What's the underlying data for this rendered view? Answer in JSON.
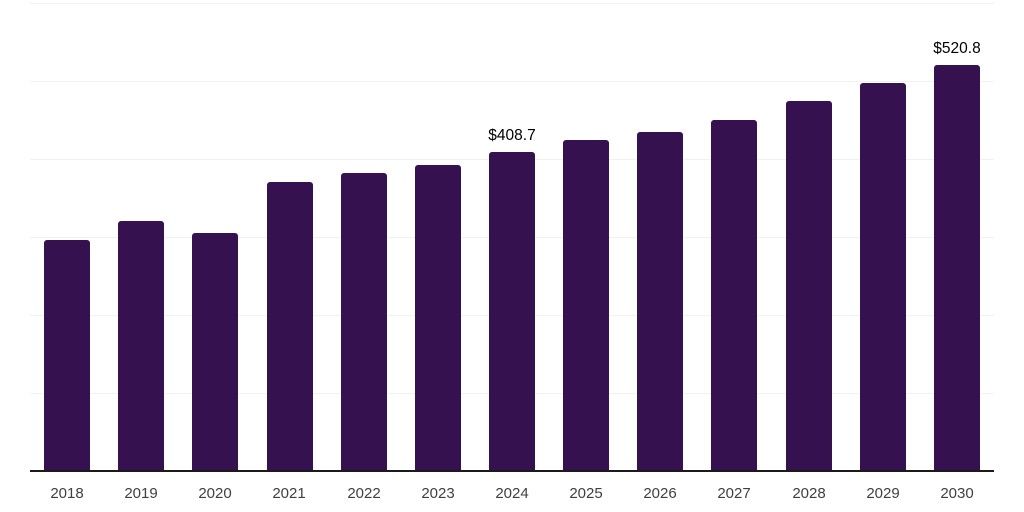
{
  "chart_data": {
    "type": "bar",
    "title": "",
    "xlabel": "",
    "ylabel": "",
    "categories": [
      "2018",
      "2019",
      "2020",
      "2021",
      "2022",
      "2023",
      "2024",
      "2025",
      "2026",
      "2027",
      "2028",
      "2029",
      "2030"
    ],
    "values": [
      296,
      320,
      305,
      370,
      382,
      392,
      408.7,
      424,
      435,
      450,
      474,
      497,
      520.8
    ],
    "data_labels": [
      {
        "category": "2024",
        "text": "$408.7"
      },
      {
        "category": "2030",
        "text": "$520.8"
      }
    ],
    "ylim": [
      0,
      600
    ],
    "grid": true,
    "gridline_values": [
      100,
      200,
      300,
      400,
      500,
      600
    ],
    "legend": false,
    "colors": {
      "bar": "#36114F",
      "gridline": "#f1f1f1",
      "axis_line": "#1a1a1a",
      "tick_label": "#404040",
      "value_label": "#000000",
      "background": "#ffffff"
    }
  }
}
